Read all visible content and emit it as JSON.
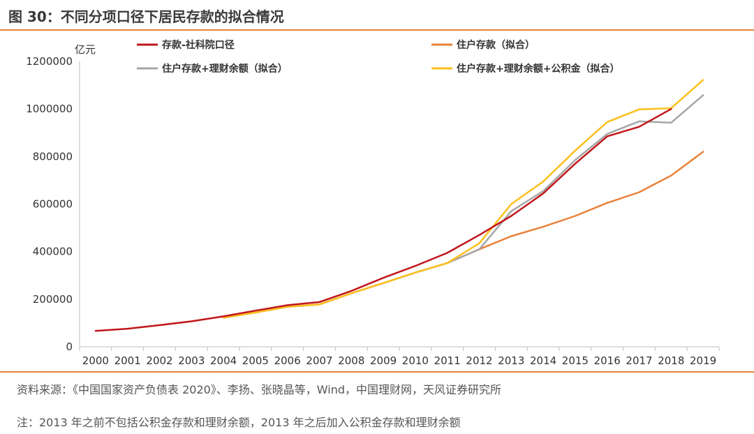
{
  "figure": {
    "title": "图 30：不同分项口径下居民存款的拟合情况",
    "source": "资料来源：《中国国家资产负债表 2020》、李扬、张晓晶等，Wind，中国理财网，天风证券研究所",
    "note": "注：2013 年之前不包括公积金存款和理财余额，2013 年之后加入公积金存款和理财余额",
    "accent_color": "#e8823a"
  },
  "chart_data": {
    "type": "line",
    "unit_label": "亿元",
    "ylim": [
      0,
      1200000
    ],
    "yticks": [
      "0",
      "200000",
      "400000",
      "600000",
      "800000",
      "1000000",
      "1200000"
    ],
    "yticks_values": [
      0,
      200000,
      400000,
      600000,
      800000,
      1000000,
      1200000
    ],
    "categories": [
      "2000",
      "2001",
      "2002",
      "2003",
      "2004",
      "2005",
      "2006",
      "2007",
      "2008",
      "2009",
      "2010",
      "2011",
      "2012",
      "2013",
      "2014",
      "2015",
      "2016",
      "2017",
      "2018",
      "2019"
    ],
    "grid": false,
    "legend_placement": "top",
    "series": [
      {
        "name": "存款-社科院口径",
        "color": "#c0161b",
        "values": [
          67000,
          76000,
          91000,
          107000,
          128000,
          152000,
          175000,
          188000,
          235000,
          290000,
          340000,
          395000,
          470000,
          550000,
          645000,
          770000,
          885000,
          925000,
          1000000,
          null
        ]
      },
      {
        "name": "住户存款（拟合）",
        "color": "#e8823a",
        "values": [
          null,
          null,
          null,
          null,
          122000,
          144000,
          168000,
          178000,
          225000,
          268000,
          312000,
          352000,
          410000,
          465000,
          505000,
          550000,
          605000,
          650000,
          720000,
          820000
        ]
      },
      {
        "name": "住户存款+理财余额（拟合）",
        "color": "#a6a6a6",
        "values": [
          null,
          null,
          null,
          null,
          122000,
          144000,
          168000,
          178000,
          225000,
          268000,
          312000,
          352000,
          410000,
          570000,
          655000,
          785000,
          895000,
          948000,
          942000,
          1058000
        ]
      },
      {
        "name": "住户存款+理财余额+公积金（拟合）",
        "color": "#fcc01c",
        "values": [
          null,
          null,
          null,
          null,
          122000,
          144000,
          168000,
          178000,
          225000,
          268000,
          312000,
          352000,
          435000,
          600000,
          695000,
          825000,
          945000,
          998000,
          1003000,
          1122000
        ]
      }
    ]
  }
}
